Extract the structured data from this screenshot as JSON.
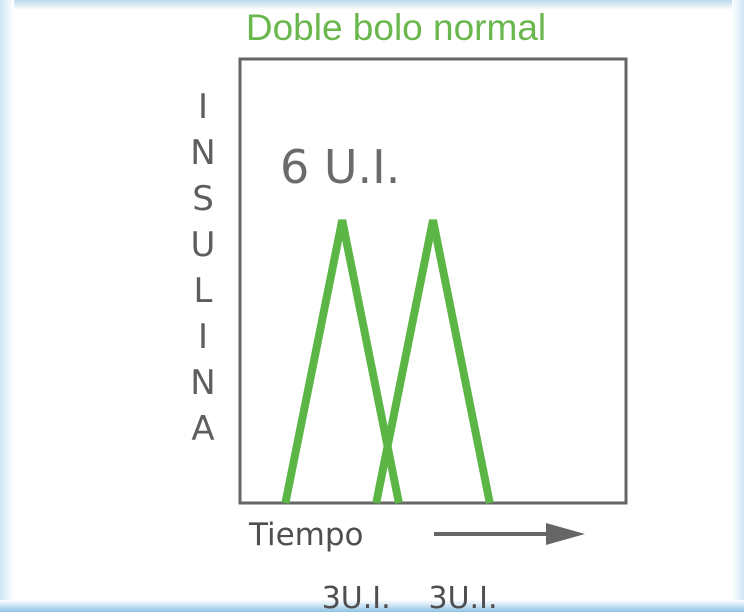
{
  "chart_data": {
    "type": "line",
    "title": "Doble bolo normal",
    "ylabel": "INSULINA",
    "xlabel": "Tiempo",
    "annotation": "6 U.I.",
    "series": [
      {
        "label": "3U.I.",
        "x": [
          0,
          1,
          2
        ],
        "y": [
          0,
          1,
          0
        ]
      },
      {
        "label": "3U.I.",
        "x": [
          1.6,
          2.6,
          3.6
        ],
        "y": [
          0,
          1,
          0
        ]
      }
    ],
    "xlim": [
      -0.8,
      6.0
    ],
    "ylim": [
      0,
      1.57
    ],
    "grid": false,
    "legend": "none",
    "colors": {
      "line": "#5cb646",
      "axes": "#666666",
      "title": "#6ab74e"
    }
  }
}
